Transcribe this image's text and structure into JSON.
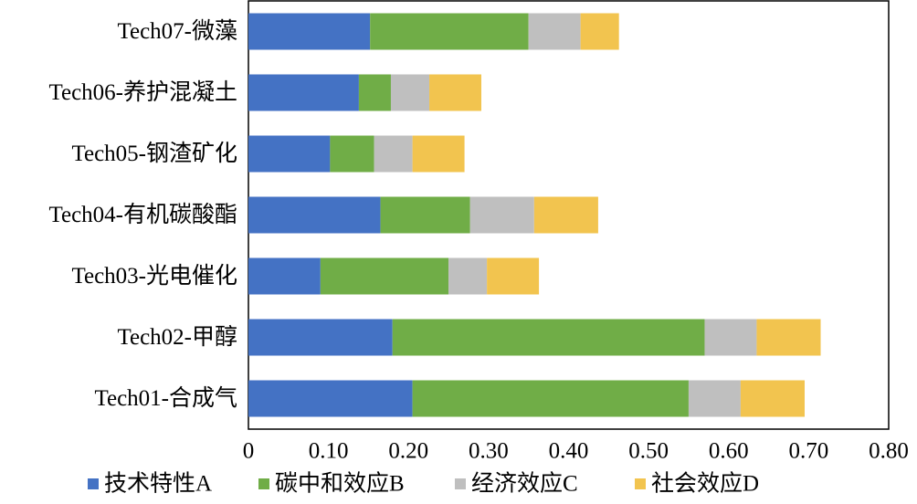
{
  "chart_data": {
    "type": "bar",
    "orientation": "horizontal",
    "stacked": true,
    "categories": [
      "Tech07-微藻",
      "Tech06-养护混凝土",
      "Tech05-钢渣矿化",
      "Tech04-有机碳酸酯",
      "Tech03-光电催化",
      "Tech02-甲醇",
      "Tech01-合成气"
    ],
    "series": [
      {
        "name": "技术特性A",
        "color": "#4472c4",
        "values": [
          0.152,
          0.138,
          0.102,
          0.165,
          0.09,
          0.18,
          0.205
        ]
      },
      {
        "name": "碳中和效应B",
        "color": "#70ad47",
        "values": [
          0.198,
          0.04,
          0.055,
          0.112,
          0.16,
          0.39,
          0.345
        ]
      },
      {
        "name": "经济效应C",
        "color": "#bfbfbf",
        "values": [
          0.065,
          0.048,
          0.048,
          0.08,
          0.048,
          0.065,
          0.065
        ]
      },
      {
        "name": "社会效应D",
        "color": "#f2c44f",
        "values": [
          0.048,
          0.065,
          0.065,
          0.08,
          0.065,
          0.08,
          0.08
        ]
      }
    ],
    "xlim": [
      0,
      0.8
    ],
    "xticks": [
      "0",
      "0.10",
      "0.20",
      "0.30",
      "0.40",
      "0.50",
      "0.60",
      "0.70",
      "0.80"
    ],
    "grid": false,
    "legend_position": "bottom",
    "title": "",
    "xlabel": "",
    "ylabel": ""
  }
}
